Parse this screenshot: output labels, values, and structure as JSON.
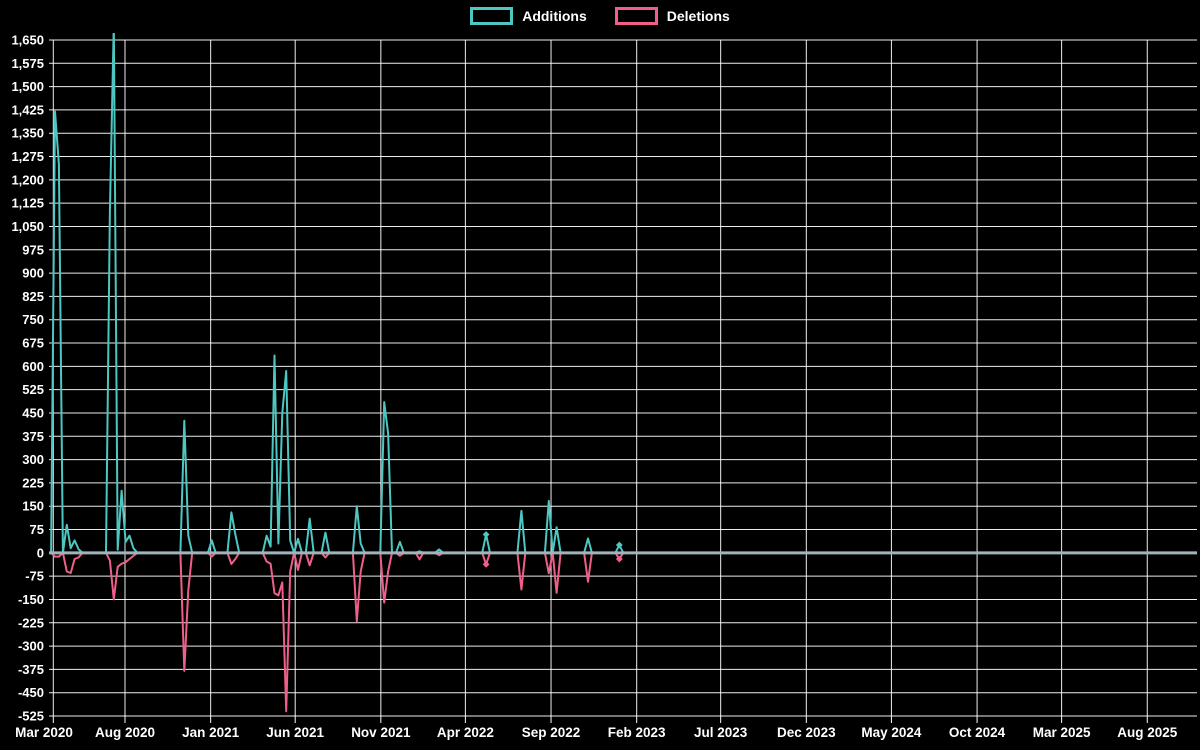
{
  "chart_data": {
    "type": "line",
    "title": "",
    "legend_position": "top-center",
    "background_color": "#000000",
    "text_color": "#ffffff",
    "grid_color": "#ffffff",
    "zero_baseline_color": "#a0b4be",
    "ylim": [
      -525,
      1650
    ],
    "ytick_step": 75,
    "grid": "on",
    "x_ticks": [
      {
        "label": "Mar 2020",
        "date": "2020-03-01"
      },
      {
        "label": "Aug 2020",
        "date": "2020-08-01"
      },
      {
        "label": "Jan 2021",
        "date": "2021-01-01"
      },
      {
        "label": "Jun 2021",
        "date": "2021-06-01"
      },
      {
        "label": "Nov 2021",
        "date": "2021-11-01"
      },
      {
        "label": "Apr 2022",
        "date": "2022-04-01"
      },
      {
        "label": "Sep 2022",
        "date": "2022-09-01"
      },
      {
        "label": "Feb 2023",
        "date": "2023-02-01"
      },
      {
        "label": "Jul 2023",
        "date": "2023-07-01"
      },
      {
        "label": "Dec 2023",
        "date": "2023-12-01"
      },
      {
        "label": "May 2024",
        "date": "2024-05-01"
      },
      {
        "label": "Oct 2024",
        "date": "2024-10-01"
      },
      {
        "label": "Mar 2025",
        "date": "2025-03-01"
      },
      {
        "label": "Aug 2025",
        "date": "2025-08-01"
      }
    ],
    "series": [
      {
        "name": "Additions",
        "color": "#4dc7c2",
        "points": [
          {
            "d": "2020-03-29",
            "v": 1420
          },
          {
            "d": "2020-04-05",
            "v": 1250
          },
          {
            "d": "2020-04-19",
            "v": 90
          },
          {
            "d": "2020-04-26",
            "v": 15
          },
          {
            "d": "2020-05-03",
            "v": 40
          },
          {
            "d": "2020-05-10",
            "v": 12
          },
          {
            "d": "2020-07-05",
            "v": 1100
          },
          {
            "d": "2020-07-12",
            "v": 1700
          },
          {
            "d": "2020-07-19",
            "v": 10
          },
          {
            "d": "2020-07-26",
            "v": 200
          },
          {
            "d": "2020-08-02",
            "v": 35
          },
          {
            "d": "2020-08-09",
            "v": 55
          },
          {
            "d": "2020-08-16",
            "v": 15
          },
          {
            "d": "2020-11-15",
            "v": 425
          },
          {
            "d": "2020-11-22",
            "v": 55
          },
          {
            "d": "2021-01-03",
            "v": 40
          },
          {
            "d": "2021-02-07",
            "v": 130
          },
          {
            "d": "2021-02-14",
            "v": 60
          },
          {
            "d": "2021-04-11",
            "v": 55
          },
          {
            "d": "2021-04-18",
            "v": 20
          },
          {
            "d": "2021-04-25",
            "v": 635
          },
          {
            "d": "2021-05-02",
            "v": 30
          },
          {
            "d": "2021-05-09",
            "v": 450
          },
          {
            "d": "2021-05-16",
            "v": 585
          },
          {
            "d": "2021-05-23",
            "v": 40
          },
          {
            "d": "2021-06-06",
            "v": 45
          },
          {
            "d": "2021-06-27",
            "v": 110
          },
          {
            "d": "2021-07-25",
            "v": 65
          },
          {
            "d": "2021-09-19",
            "v": 150
          },
          {
            "d": "2021-09-26",
            "v": 30
          },
          {
            "d": "2021-11-07",
            "v": 485
          },
          {
            "d": "2021-11-14",
            "v": 385
          },
          {
            "d": "2021-12-05",
            "v": 35
          },
          {
            "d": "2022-01-09",
            "v": 5
          },
          {
            "d": "2022-02-13",
            "v": 11
          },
          {
            "d": "2022-05-08",
            "v": 59,
            "marker": true
          },
          {
            "d": "2022-07-10",
            "v": 135
          },
          {
            "d": "2022-08-28",
            "v": 167
          },
          {
            "d": "2022-09-11",
            "v": 82
          },
          {
            "d": "2022-11-06",
            "v": 46
          },
          {
            "d": "2023-01-01",
            "v": 25,
            "marker": true
          },
          {
            "d": "2023-02-05",
            "v": 0
          }
        ]
      },
      {
        "name": "Deletions",
        "color": "#f05f8a",
        "points": [
          {
            "d": "2020-03-29",
            "v": -12
          },
          {
            "d": "2020-04-05",
            "v": -12
          },
          {
            "d": "2020-04-19",
            "v": -60
          },
          {
            "d": "2020-04-26",
            "v": -65
          },
          {
            "d": "2020-05-03",
            "v": -20
          },
          {
            "d": "2020-05-10",
            "v": -15
          },
          {
            "d": "2020-07-05",
            "v": -25
          },
          {
            "d": "2020-07-12",
            "v": -150
          },
          {
            "d": "2020-07-19",
            "v": -45
          },
          {
            "d": "2020-07-26",
            "v": -35
          },
          {
            "d": "2020-08-02",
            "v": -30
          },
          {
            "d": "2020-08-09",
            "v": -20
          },
          {
            "d": "2020-08-16",
            "v": -10
          },
          {
            "d": "2020-11-15",
            "v": -380
          },
          {
            "d": "2020-11-22",
            "v": -120
          },
          {
            "d": "2021-01-03",
            "v": -12
          },
          {
            "d": "2021-02-07",
            "v": -36
          },
          {
            "d": "2021-02-14",
            "v": -20
          },
          {
            "d": "2021-04-11",
            "v": -28
          },
          {
            "d": "2021-04-18",
            "v": -35
          },
          {
            "d": "2021-04-25",
            "v": -130
          },
          {
            "d": "2021-05-02",
            "v": -137
          },
          {
            "d": "2021-05-09",
            "v": -95
          },
          {
            "d": "2021-05-16",
            "v": -510
          },
          {
            "d": "2021-05-23",
            "v": -60
          },
          {
            "d": "2021-06-06",
            "v": -55
          },
          {
            "d": "2021-06-27",
            "v": -40
          },
          {
            "d": "2021-07-25",
            "v": -15
          },
          {
            "d": "2021-09-19",
            "v": -220
          },
          {
            "d": "2021-09-26",
            "v": -60
          },
          {
            "d": "2021-11-07",
            "v": -160
          },
          {
            "d": "2021-11-14",
            "v": -60
          },
          {
            "d": "2021-12-05",
            "v": -10
          },
          {
            "d": "2022-01-09",
            "v": -21
          },
          {
            "d": "2022-02-13",
            "v": -8
          },
          {
            "d": "2022-05-08",
            "v": -37,
            "marker": true
          },
          {
            "d": "2022-07-10",
            "v": -118
          },
          {
            "d": "2022-08-28",
            "v": -66
          },
          {
            "d": "2022-09-11",
            "v": -129
          },
          {
            "d": "2022-11-06",
            "v": -93
          },
          {
            "d": "2023-01-01",
            "v": -20,
            "marker": true
          },
          {
            "d": "2023-02-05",
            "v": 0
          }
        ]
      }
    ],
    "notes": "Weekly git code-frequency chart. Deletions plotted as negative values. Additions spike week of 2020-07-12 is clipped above the y-axis max of 1,650. Light gray zero baseline is drawn on top of both series. No data activity after Feb 2023."
  }
}
